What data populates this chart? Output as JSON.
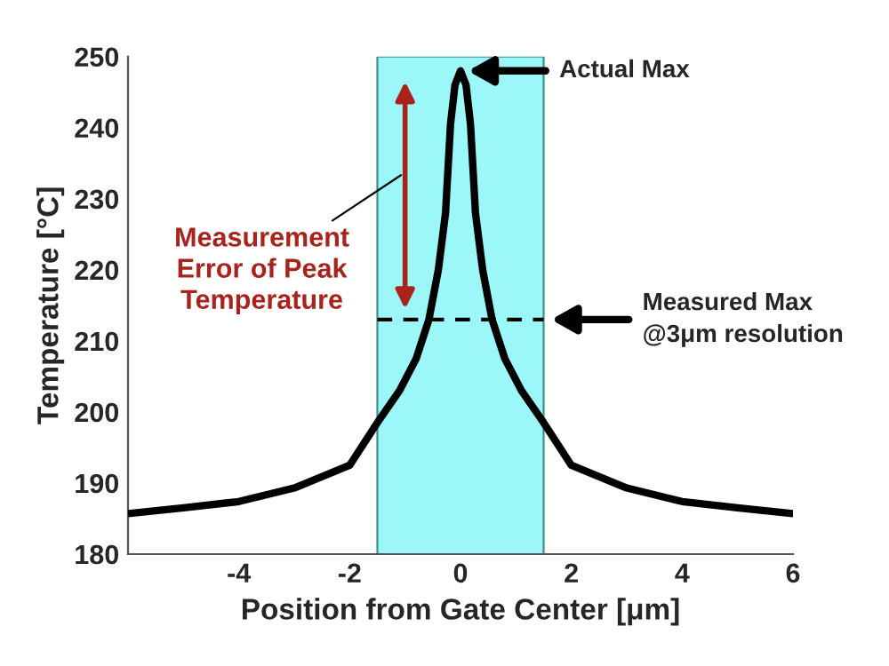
{
  "chart_data": {
    "type": "line",
    "xlabel": "Position from Gate Center [μm]",
    "ylabel": "Temperature [°C]",
    "xlim": [
      -6,
      6
    ],
    "xticks": [
      -4,
      -2,
      0,
      2,
      4,
      6
    ],
    "ylim": [
      180,
      250
    ],
    "yticks": [
      180,
      190,
      200,
      210,
      220,
      230,
      240,
      250
    ],
    "grid": false,
    "legend": false,
    "series": [
      {
        "color": "#000000",
        "line_style": "solid",
        "x": [
          -6,
          -5,
          -4,
          -3,
          -2,
          -1.5,
          -1.1,
          -0.8,
          -0.57,
          -0.4,
          -0.27,
          -0.18,
          -0.1,
          0,
          0.1,
          0.18,
          0.27,
          0.4,
          0.57,
          0.8,
          1.1,
          1.5,
          2,
          3,
          4,
          5,
          6
        ],
        "values": [
          185.7,
          186.5,
          187.4,
          189.3,
          192.5,
          198.5,
          203,
          207.5,
          213,
          220,
          228,
          240.5,
          246,
          248,
          246,
          240.5,
          228,
          220,
          213,
          207.5,
          203,
          198.5,
          192.5,
          189.3,
          187.4,
          186.5,
          185.7
        ]
      },
      {
        "color": "#000000",
        "line_style": "dashed",
        "x": [
          -1.5,
          1.5
        ],
        "values": [
          213,
          213
        ]
      }
    ],
    "bands": [
      {
        "axis": "x",
        "from": -1.5,
        "to": 1.5,
        "color": "#9cf8f8"
      }
    ],
    "annotations": [
      "Actual Max",
      "Measured Max\n@3μm resolution",
      "Measurement\nError of Peak\nTemperature"
    ]
  }
}
